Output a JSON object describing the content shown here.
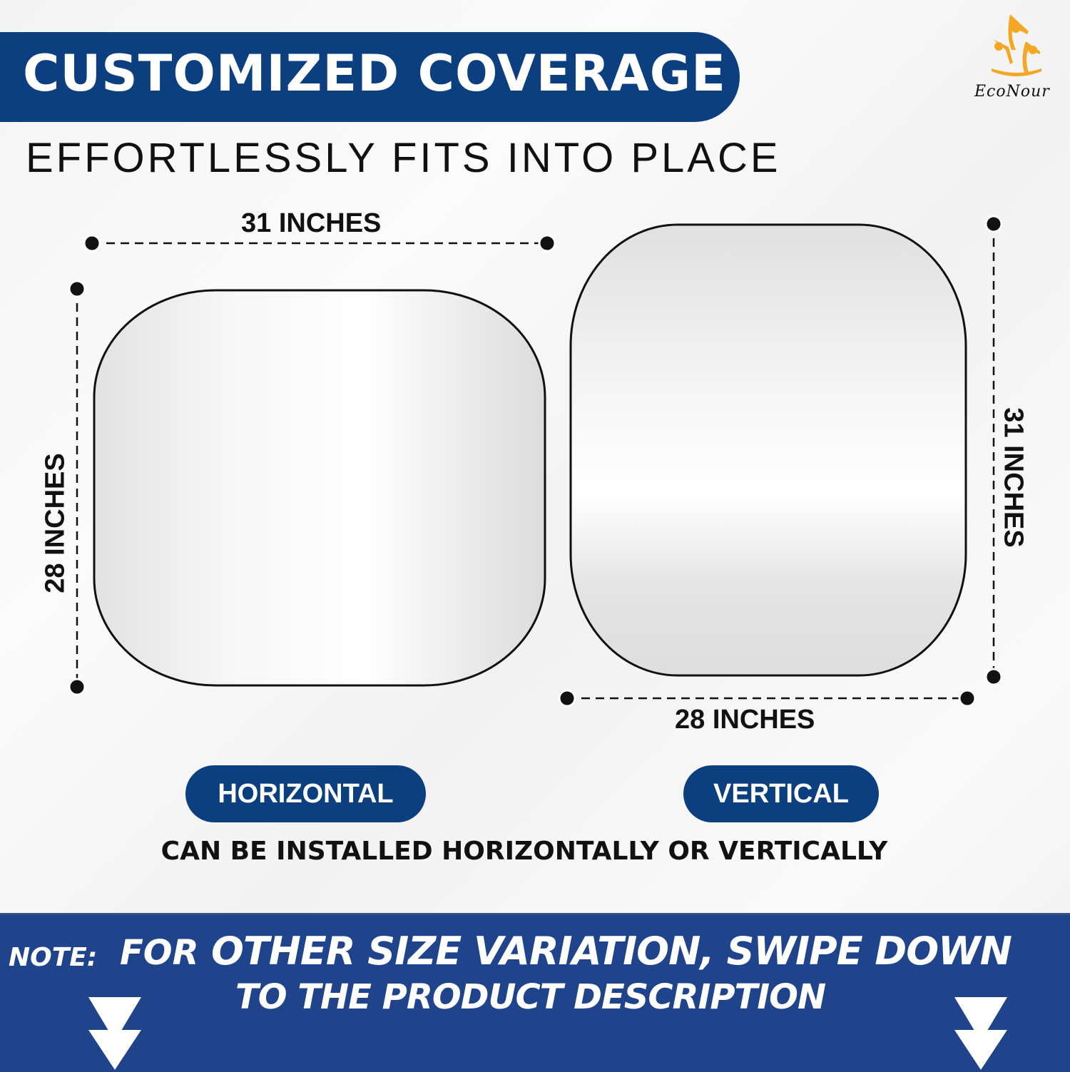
{
  "header": {
    "title": "CUSTOMIZED COVERAGE",
    "subtitle": "EFFORTLESSLY FITS INTO PLACE"
  },
  "brand": {
    "name": "EcoNour",
    "registered": "®",
    "logo_color": "#f5a623"
  },
  "horizontal": {
    "width_label": "31 INCHES",
    "height_label": "28 INCHES",
    "button": "HORIZONTAL"
  },
  "vertical": {
    "width_label": "28 INCHES",
    "height_label": "31 INCHES",
    "button": "VERTICAL"
  },
  "install_note": "CAN BE INSTALLED HORIZONTALLY OR VERTICALLY",
  "footer": {
    "prefix": "NOTE:",
    "line1_a": "FOR",
    "line1_b": "OTHER SIZE VARIATION, SWIPE DOWN",
    "line2": "TO THE PRODUCT DESCRIPTION",
    "icon": "arrow-down-icon"
  },
  "colors": {
    "navy": "#0b3f7f",
    "band": "#1f448c"
  }
}
